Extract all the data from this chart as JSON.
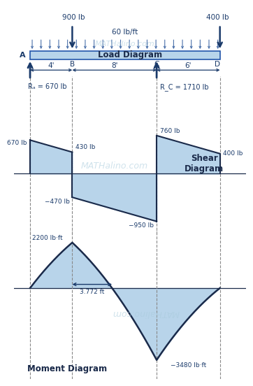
{
  "beam_color": "#b8d4ea",
  "beam_edge": "#2255aa",
  "fill_color": "#b8d4ea",
  "line_color": "#1a2a4a",
  "text_color": "#1a3a6a",
  "arrow_color": "#1a3a6a",
  "dist_arrow_color": "#4a70aa",
  "bg_color": "#ffffff",
  "span_A": 0,
  "span_B": 4,
  "span_C": 12,
  "span_D": 18,
  "RA": 670,
  "RC": 1710,
  "shear_A": 670,
  "shear_Bm": 430,
  "shear_Bp": -470,
  "shear_Cm": -950,
  "shear_Cp": 760,
  "shear_Dm": 400,
  "moment_at_B": 2200,
  "moment_at_C": -3480,
  "moment_zero_from_B": 3.772,
  "watermark": "MATHalino.com",
  "title_load": "Load Diagram",
  "title_shear": "Shear\nDiagram",
  "title_moment": "Moment Diagram"
}
